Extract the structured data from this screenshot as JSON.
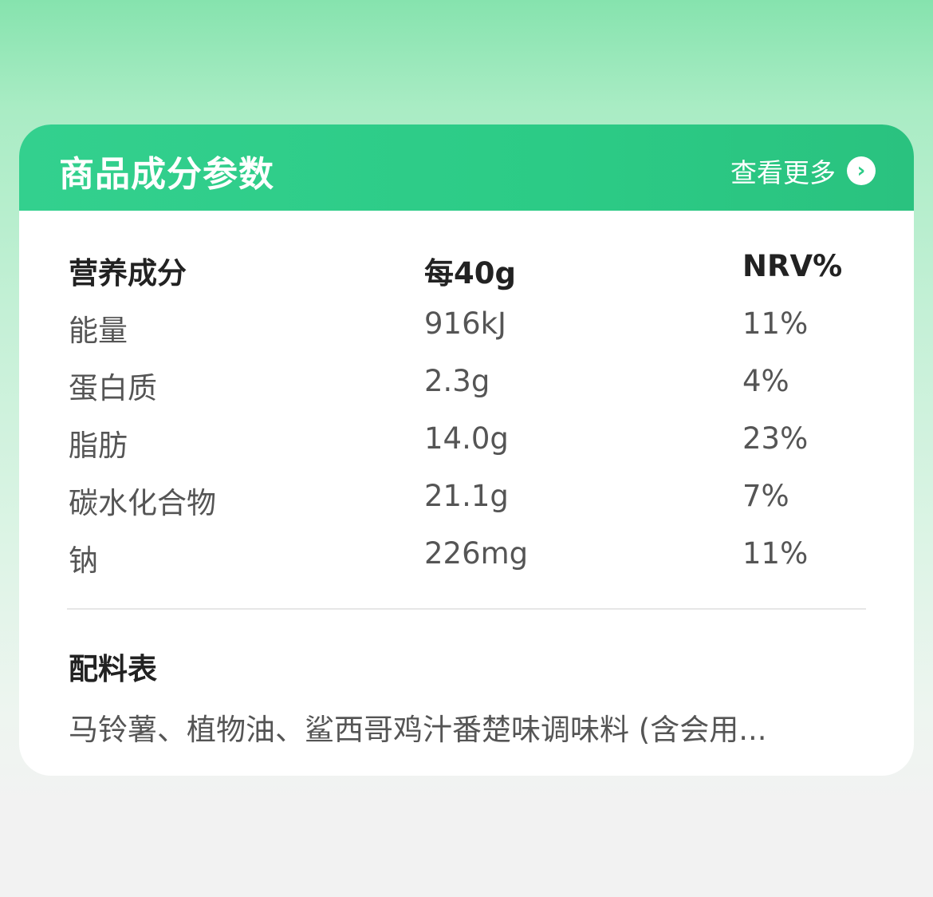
{
  "header": {
    "title": "商品成分参数",
    "more_label": "查看更多",
    "more_icon": "chevron-right-circle-icon"
  },
  "table": {
    "columns": [
      "营养成分",
      "每40g",
      "NRV%"
    ],
    "rows": [
      {
        "name": "能量",
        "amount": "916kJ",
        "nrv": "11%"
      },
      {
        "name": "蛋白质",
        "amount": "2.3g",
        "nrv": "4%"
      },
      {
        "name": "脂肪",
        "amount": "14.0g",
        "nrv": "23%"
      },
      {
        "name": "碳水化合物",
        "amount": "21.1g",
        "nrv": "7%"
      },
      {
        "name": "钠",
        "amount": "226mg",
        "nrv": "11%"
      }
    ]
  },
  "ingredients": {
    "title": "配料表",
    "text": "马铃薯、植物油、鲨西哥鸡汁番楚味调味料 (含会用..."
  },
  "colors": {
    "accent": "#2ccb86"
  }
}
